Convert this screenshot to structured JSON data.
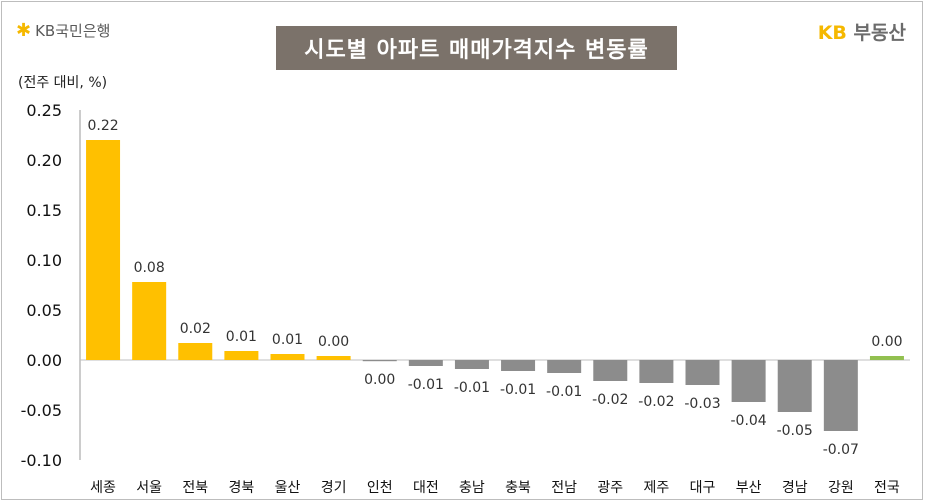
{
  "header": {
    "logo_symbol": "✱",
    "logo_text": "KB국민은행",
    "title": "시도별 아파트 매매가격지수 변동률",
    "brand_kb": "KB",
    "brand_rest": "부동산"
  },
  "chart_data": {
    "type": "bar",
    "title": "시도별 아파트 매매가격지수 변동률",
    "ylabel": "(전주 대비, %)",
    "xlabel": "",
    "ylim": [
      -0.1,
      0.25
    ],
    "yticks": [
      0.25,
      0.2,
      0.15,
      0.1,
      0.05,
      0.0,
      -0.05,
      -0.1
    ],
    "ytick_labels": [
      "0.25",
      "0.20",
      "0.15",
      "0.10",
      "0.05",
      "0.00",
      "-0.05",
      "-0.10"
    ],
    "categories": [
      "세종",
      "서울",
      "전북",
      "경북",
      "울산",
      "경기",
      "인천",
      "대전",
      "충남",
      "충북",
      "전남",
      "광주",
      "제주",
      "대구",
      "부산",
      "경남",
      "강원",
      "전국"
    ],
    "values": [
      0.22,
      0.078,
      0.017,
      0.009,
      0.006,
      0.004,
      -0.001,
      -0.006,
      -0.009,
      -0.011,
      -0.013,
      -0.021,
      -0.023,
      -0.025,
      -0.042,
      -0.052,
      -0.071,
      0.004
    ],
    "data_labels": [
      "0.22",
      "0.08",
      "0.02",
      "0.01",
      "0.01",
      "0.00",
      "0.00",
      "-0.01",
      "-0.01",
      "-0.01",
      "-0.01",
      "-0.02",
      "-0.02",
      "-0.03",
      "-0.04",
      "-0.05",
      "-0.07",
      "0.00"
    ],
    "colors": {
      "positive": "#ffc000",
      "negative": "#8c8c8c",
      "national": "#92c050"
    },
    "grid": false,
    "legend": "none"
  }
}
